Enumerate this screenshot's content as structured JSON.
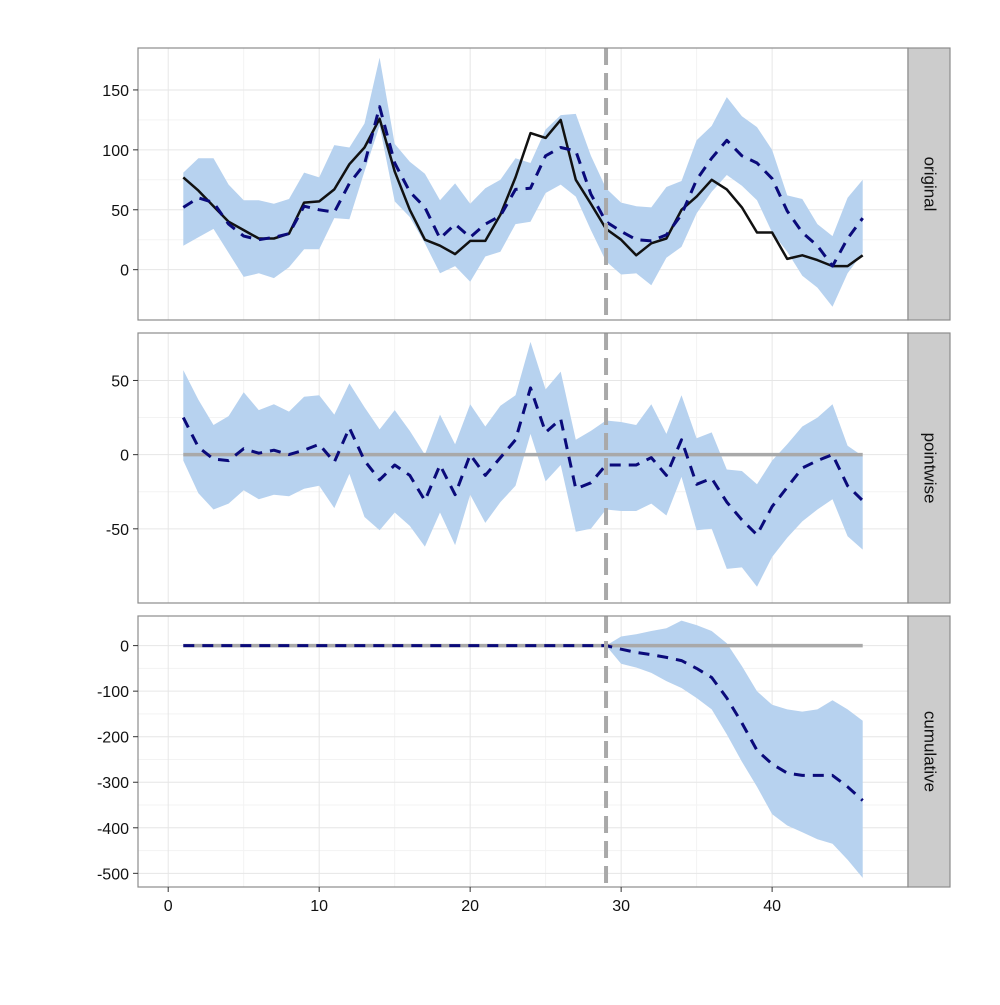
{
  "chart_data": {
    "type": "line",
    "title": "",
    "xlabel": "",
    "xlim": [
      -2,
      49
    ],
    "x_ticks": [
      0,
      10,
      20,
      30,
      40
    ],
    "intervention_x": 29,
    "colors": {
      "band": "#b7d2ef",
      "prediction": "#0a0a7a",
      "observed": "#111111",
      "reference": "#a9a9a9",
      "strip": "#cccccc",
      "panel_border": "#8c8c8c"
    },
    "panels": [
      {
        "name": "original",
        "strip_label": "original",
        "ylim": [
          -42,
          185
        ],
        "y_ticks": [
          0,
          50,
          100,
          150
        ],
        "series": [
          {
            "name": "observed",
            "style": "solid",
            "x": [
              1,
              2,
              3,
              4,
              5,
              6,
              7,
              8,
              9,
              10,
              11,
              12,
              13,
              14,
              15,
              16,
              17,
              18,
              19,
              20,
              21,
              22,
              23,
              24,
              25,
              26,
              27,
              28,
              29,
              30,
              31,
              32,
              33,
              34,
              35,
              36,
              37,
              38,
              39,
              40,
              41,
              42,
              43,
              44,
              45,
              46
            ],
            "values": [
              77,
              66,
              53,
              40,
              33,
              26,
              26,
              30,
              56,
              57,
              67,
              88,
              102,
              126,
              82,
              50,
              25,
              20,
              13,
              24,
              24,
              46,
              77,
              114,
              110,
              125,
              75,
              55,
              34,
              25,
              12,
              22,
              26,
              50,
              61,
              75,
              67,
              52,
              31,
              31,
              9,
              12,
              8,
              3,
              3,
              12
            ]
          },
          {
            "name": "prediction",
            "style": "dashed",
            "x": [
              1,
              2,
              3,
              4,
              5,
              6,
              7,
              8,
              9,
              10,
              11,
              12,
              13,
              14,
              15,
              16,
              17,
              18,
              19,
              20,
              21,
              22,
              23,
              24,
              25,
              26,
              27,
              28,
              29,
              30,
              31,
              32,
              33,
              34,
              35,
              36,
              37,
              38,
              39,
              40,
              41,
              42,
              43,
              44,
              45,
              46
            ],
            "values": [
              52,
              60,
              56,
              38,
              28,
              25,
              27,
              30,
              53,
              50,
              48,
              72,
              88,
              136,
              89,
              65,
              52,
              26,
              38,
              27,
              38,
              45,
              67,
              68,
              95,
              102,
              99,
              63,
              40,
              32,
              25,
              24,
              29,
              46,
              75,
              93,
              108,
              95,
              89,
              76,
              49,
              31,
              20,
              3,
              26,
              43
            ],
            "lower": [
              20,
              27,
              34,
              14,
              -6,
              -3,
              -7,
              2,
              17,
              17,
              43,
              42,
              82,
              120,
              57,
              44,
              22,
              -3,
              3,
              -10,
              11,
              15,
              38,
              40,
              64,
              71,
              61,
              33,
              7,
              -4,
              -3,
              -13,
              10,
              19,
              47,
              65,
              79,
              70,
              58,
              31,
              15,
              -5,
              -15,
              -31,
              -3,
              14
            ],
            "upper": [
              81,
              93,
              93,
              71,
              58,
              58,
              55,
              59,
              81,
              77,
              104,
              102,
              122,
              177,
              105,
              90,
              80,
              58,
              72,
              55,
              68,
              75,
              93,
              89,
              117,
              129,
              130,
              95,
              68,
              56,
              53,
              52,
              69,
              74,
              108,
              120,
              144,
              128,
              119,
              100,
              62,
              59,
              38,
              28,
              60,
              75
            ]
          }
        ],
        "reference_y": null
      },
      {
        "name": "pointwise",
        "strip_label": "pointwise",
        "ylim": [
          -100,
          82
        ],
        "y_ticks": [
          -50,
          0,
          50
        ],
        "series": [
          {
            "name": "prediction",
            "style": "dashed",
            "x": [
              1,
              2,
              3,
              4,
              5,
              6,
              7,
              8,
              9,
              10,
              11,
              12,
              13,
              14,
              15,
              16,
              17,
              18,
              19,
              20,
              21,
              22,
              23,
              24,
              25,
              26,
              27,
              28,
              29,
              30,
              31,
              32,
              33,
              34,
              35,
              36,
              37,
              38,
              39,
              40,
              41,
              42,
              43,
              44,
              45,
              46
            ],
            "values": [
              25,
              5,
              -3,
              -4,
              4,
              1,
              3,
              0,
              3,
              7,
              -5,
              18,
              -4,
              -17,
              -7,
              -14,
              -31,
              -7,
              -27,
              0,
              -14,
              -2,
              10,
              45,
              15,
              24,
              -23,
              -19,
              -7,
              -7,
              -7,
              -2,
              -14,
              10,
              -20,
              -16,
              -32,
              -44,
              -54,
              -35,
              -22,
              -9,
              -4,
              0,
              -21,
              -31
            ],
            "lower": [
              -4,
              -26,
              -37,
              -33,
              -24,
              -30,
              -27,
              -28,
              -23,
              -21,
              -36,
              -13,
              -42,
              -51,
              -39,
              -48,
              -62,
              -39,
              -61,
              -27,
              -46,
              -32,
              -21,
              14,
              -18,
              -7,
              -52,
              -50,
              -37,
              -38,
              -38,
              -33,
              -41,
              -15,
              -51,
              -50,
              -77,
              -76,
              -89,
              -69,
              -56,
              -45,
              -37,
              -30,
              -55,
              -64
            ],
            "upper": [
              57,
              37,
              20,
              26,
              42,
              30,
              34,
              29,
              39,
              40,
              27,
              48,
              32,
              17,
              30,
              16,
              0,
              27,
              7,
              34,
              19,
              33,
              40,
              76,
              44,
              56,
              10,
              16,
              23,
              22,
              20,
              34,
              14,
              40,
              11,
              15,
              -10,
              -11,
              -20,
              -4,
              7,
              19,
              25,
              34,
              6,
              -1
            ]
          }
        ],
        "reference_y": 0
      },
      {
        "name": "cumulative",
        "strip_label": "cumulative",
        "ylim": [
          -530,
          65
        ],
        "y_ticks": [
          -500,
          -400,
          -300,
          -200,
          -100,
          0
        ],
        "series": [
          {
            "name": "prediction",
            "style": "dashed",
            "x": [
              1,
              2,
              3,
              4,
              5,
              6,
              7,
              8,
              9,
              10,
              11,
              12,
              13,
              14,
              15,
              16,
              17,
              18,
              19,
              20,
              21,
              22,
              23,
              24,
              25,
              26,
              27,
              28,
              29,
              30,
              31,
              32,
              33,
              34,
              35,
              36,
              37,
              38,
              39,
              40,
              41,
              42,
              43,
              44,
              45,
              46
            ],
            "values": [
              0,
              0,
              0,
              0,
              0,
              0,
              0,
              0,
              0,
              0,
              0,
              0,
              0,
              0,
              0,
              0,
              0,
              0,
              0,
              0,
              0,
              0,
              0,
              0,
              0,
              0,
              0,
              0,
              0,
              -8,
              -15,
              -20,
              -26,
              -33,
              -50,
              -70,
              -115,
              -170,
              -230,
              -260,
              -280,
              -285,
              -285,
              -285,
              -310,
              -340
            ],
            "lower": [
              0,
              0,
              0,
              0,
              0,
              0,
              0,
              0,
              0,
              0,
              0,
              0,
              0,
              0,
              0,
              0,
              0,
              0,
              0,
              0,
              0,
              0,
              0,
              0,
              0,
              0,
              0,
              0,
              0,
              -40,
              -48,
              -60,
              -78,
              -93,
              -115,
              -140,
              -195,
              -255,
              -310,
              -370,
              -395,
              -410,
              -425,
              -435,
              -470,
              -510
            ],
            "upper": [
              0,
              0,
              0,
              0,
              0,
              0,
              0,
              0,
              0,
              0,
              0,
              0,
              0,
              0,
              0,
              0,
              0,
              0,
              0,
              0,
              0,
              0,
              0,
              0,
              0,
              0,
              0,
              0,
              0,
              20,
              25,
              32,
              38,
              55,
              45,
              32,
              5,
              -45,
              -100,
              -130,
              -140,
              -145,
              -140,
              -120,
              -140,
              -165
            ]
          }
        ],
        "reference_y": 0
      }
    ]
  }
}
